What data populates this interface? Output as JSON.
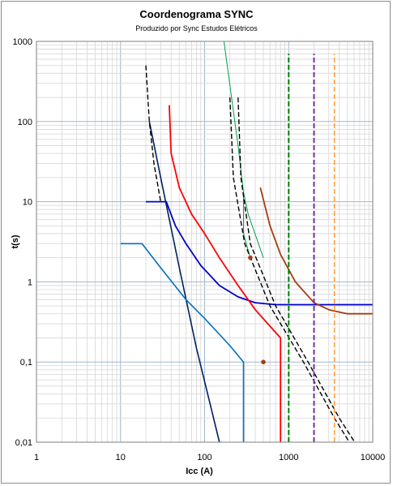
{
  "chart_data": {
    "type": "line",
    "title": "Coordenograma SYNC",
    "subtitle": "Produzido por Sync Estudos Elétricos",
    "xlabel": "Icc (A)",
    "ylabel": "t(s)",
    "x_scale": "log",
    "y_scale": "log",
    "xlim": [
      1,
      10000
    ],
    "ylim": [
      0.01,
      1000
    ],
    "grid": true,
    "x_ticks": [
      "1",
      "10",
      "100",
      "1000",
      "10000"
    ],
    "y_ticks": [
      "0,01",
      "0,1",
      "1",
      "10",
      "100",
      "1000"
    ],
    "series": [
      {
        "color": "#002060",
        "dash": false,
        "width": 1.6,
        "x": [
          22,
          30,
          50,
          80,
          150
        ],
        "y": [
          100,
          20,
          1.5,
          0.15,
          0.01
        ]
      },
      {
        "color": "#0070c0",
        "dash": false,
        "width": 1.6,
        "x": [
          10,
          18,
          30,
          60,
          100,
          200,
          290,
          290
        ],
        "y": [
          3,
          3,
          1.5,
          0.6,
          0.35,
          0.16,
          0.1,
          0.01
        ]
      },
      {
        "color": "#0000cc",
        "dash": false,
        "width": 1.8,
        "x": [
          20,
          35,
          45,
          60,
          90,
          150,
          250,
          400,
          700,
          10000
        ],
        "y": [
          10,
          10,
          5,
          3,
          1.6,
          0.9,
          0.65,
          0.55,
          0.52,
          0.52
        ]
      },
      {
        "color": "#ff0000",
        "dash": false,
        "width": 1.8,
        "x": [
          38,
          40,
          50,
          70,
          100,
          150,
          250,
          400,
          600,
          800,
          800
        ],
        "y": [
          160,
          40,
          15,
          7,
          4,
          2,
          0.9,
          0.45,
          0.28,
          0.2,
          0.01
        ]
      },
      {
        "color": "#00a050",
        "dash": false,
        "width": 1,
        "x": [
          170,
          250,
          290,
          330,
          500
        ],
        "y": [
          1000,
          50,
          13,
          7,
          2
        ]
      },
      {
        "color": "#00a050",
        "dash": false,
        "width": 1,
        "x": [
          290,
          290,
          350
        ],
        "y": [
          13,
          4,
          2
        ]
      },
      {
        "color": "#a63c14",
        "dash": false,
        "width": 1.8,
        "x": [
          460,
          600,
          800,
          1200,
          2000,
          3000,
          4000,
          5000,
          10000
        ],
        "y": [
          15,
          5,
          2.2,
          1,
          0.55,
          0.45,
          0.42,
          0.4,
          0.4
        ]
      },
      {
        "color": "#000000",
        "dash": true,
        "width": 1.4,
        "x": [
          20,
          22,
          25,
          30
        ],
        "y": [
          500,
          100,
          30,
          10
        ]
      },
      {
        "color": "#000000",
        "dash": true,
        "width": 1.4,
        "x": [
          200,
          220,
          300,
          600,
          1500,
          3500,
          6000
        ],
        "y": [
          200,
          20,
          3,
          0.5,
          0.1,
          0.02,
          0.008
        ]
      },
      {
        "color": "#000000",
        "dash": true,
        "width": 1.4,
        "x": [
          250,
          270,
          350,
          700,
          1700,
          4000,
          7000
        ],
        "y": [
          200,
          20,
          3,
          0.5,
          0.1,
          0.02,
          0.008
        ]
      },
      {
        "color": "#008000",
        "dash": true,
        "width": 2,
        "x": [
          1000,
          1000
        ],
        "y": [
          0.01,
          700
        ]
      },
      {
        "color": "#7030a0",
        "dash": true,
        "width": 2,
        "x": [
          2000,
          2000
        ],
        "y": [
          0.01,
          700
        ]
      },
      {
        "color": "#ffa040",
        "dash": true,
        "width": 1.6,
        "x": [
          3500,
          3500
        ],
        "y": [
          0.01,
          700
        ]
      }
    ],
    "markers": [
      {
        "color": "#a63c14",
        "x": 500,
        "y": 0.1
      },
      {
        "color": "#a63c14",
        "x": 350,
        "y": 2
      }
    ]
  }
}
